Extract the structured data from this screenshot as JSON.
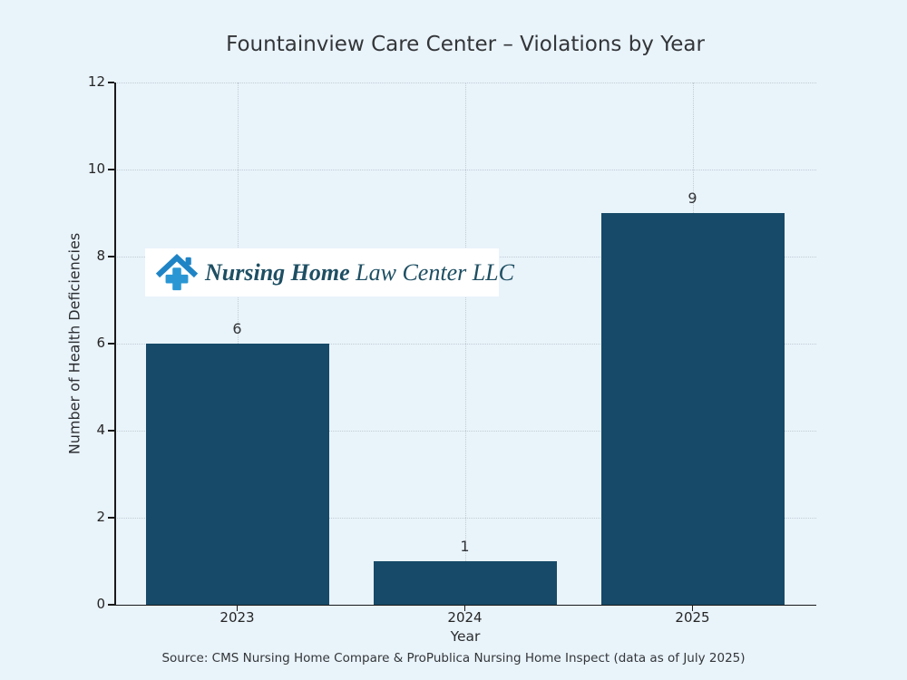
{
  "title": "Fountainview Care Center – Violations by Year",
  "source_note": "Source: CMS Nursing Home Compare & ProPublica Nursing Home Inspect (data as of July 2025)",
  "watermark": {
    "icon": "house-medical-cross-icon",
    "bold_text": "Nursing Home",
    "regular_text": " Law Center LLC"
  },
  "colors": {
    "background": "#e9f3fa",
    "bar": "#164a68",
    "grid": "#c2ccd4",
    "axis": "#1a1a1a",
    "text": "#333639",
    "logo_roof_blue": "#1f84c5",
    "logo_cross_blue": "#2a97d4",
    "logo_text": "#1e4f63"
  },
  "chart_data": {
    "type": "bar",
    "title": "Fountainview Care Center – Violations by Year",
    "categories": [
      "2023",
      "2024",
      "2025"
    ],
    "values": [
      6,
      1,
      9
    ],
    "bar_labels": [
      "6",
      "1",
      "9"
    ],
    "xlabel": "Year",
    "ylabel": "Number of Health Deficiencies",
    "ylim": [
      0,
      12
    ],
    "yticks": [
      0,
      2,
      4,
      6,
      8,
      10,
      12
    ],
    "grid": true,
    "grid_style": "dotted",
    "legend": false
  }
}
